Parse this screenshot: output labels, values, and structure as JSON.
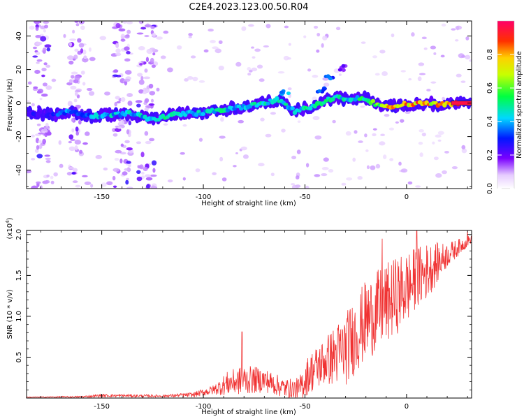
{
  "title": "C2E4.2023.123.00.50.R04",
  "chart_data": [
    {
      "type": "heatmap",
      "xlabel": "Height of straight line (km)",
      "ylabel": "Frequency (Hz)",
      "xlim": [
        -187,
        32
      ],
      "ylim": [
        -51,
        49
      ],
      "xticks": [
        -150,
        -100,
        -50,
        0
      ],
      "yticks": [
        -40,
        -20,
        0,
        20,
        40
      ],
      "colorbar": {
        "label": "Normalized spectral amplitude",
        "ticks": [
          "0.0",
          "0.2",
          "0.4",
          "0.6",
          "0.8"
        ],
        "range": [
          0,
          1
        ]
      },
      "ridge": [
        {
          "x": -187,
          "y": -6,
          "amp": 0.25
        },
        {
          "x": -175,
          "y": -7,
          "amp": 0.3
        },
        {
          "x": -165,
          "y": -5,
          "amp": 0.4
        },
        {
          "x": -155,
          "y": -8,
          "amp": 0.4
        },
        {
          "x": -145,
          "y": -7,
          "amp": 0.45
        },
        {
          "x": -135,
          "y": -6,
          "amp": 0.45
        },
        {
          "x": -125,
          "y": -10,
          "amp": 0.45
        },
        {
          "x": -118,
          "y": -8,
          "amp": 0.5
        },
        {
          "x": -110,
          "y": -6,
          "amp": 0.5
        },
        {
          "x": -100,
          "y": -6,
          "amp": 0.45
        },
        {
          "x": -92,
          "y": -4,
          "amp": 0.5
        },
        {
          "x": -85,
          "y": -3,
          "amp": 0.45
        },
        {
          "x": -78,
          "y": -2,
          "amp": 0.5
        },
        {
          "x": -70,
          "y": 0,
          "amp": 0.5
        },
        {
          "x": -63,
          "y": 2,
          "amp": 0.5
        },
        {
          "x": -55,
          "y": -5,
          "amp": 0.45
        },
        {
          "x": -48,
          "y": -3,
          "amp": 0.5
        },
        {
          "x": -42,
          "y": 0,
          "amp": 0.5
        },
        {
          "x": -35,
          "y": 4,
          "amp": 0.5
        },
        {
          "x": -28,
          "y": 2,
          "amp": 0.45
        },
        {
          "x": -20,
          "y": 3,
          "amp": 0.55
        },
        {
          "x": -15,
          "y": -1,
          "amp": 0.65
        },
        {
          "x": -8,
          "y": -2,
          "amp": 0.8
        },
        {
          "x": 0,
          "y": -0.5,
          "amp": 0.85
        },
        {
          "x": 8,
          "y": 0,
          "amp": 0.85
        },
        {
          "x": 16,
          "y": -1,
          "amp": 0.8
        },
        {
          "x": 24,
          "y": 0,
          "amp": 1.0
        },
        {
          "x": 31,
          "y": 0,
          "amp": 1.0
        }
      ],
      "side_features": [
        {
          "x": -38,
          "y": 16,
          "amp": 0.35
        },
        {
          "x": -32,
          "y": 21,
          "amp": 0.2
        },
        {
          "x": -60,
          "y": 6,
          "amp": 0.45
        },
        {
          "x": -42,
          "y": 8,
          "amp": 0.35
        }
      ],
      "vertical_streaks_x": [
        -180,
        -162,
        -140,
        -128
      ]
    },
    {
      "type": "line",
      "xlabel": "Height of straight line (km)",
      "ylabel": "SNR (10 * v/v)",
      "multiplier": "(x10",
      "multiplier_exp": "4",
      "xlim": [
        -187,
        32
      ],
      "ylim": [
        0,
        2.05
      ],
      "xticks": [
        -150,
        -100,
        -50,
        0
      ],
      "yticks": [
        "0.5",
        "1.0",
        "1.5",
        "2.0"
      ],
      "series": [
        {
          "color": "#f03232",
          "envelope": [
            {
              "x": -187,
              "base": 0.01,
              "amp": 0.005
            },
            {
              "x": -160,
              "base": 0.015,
              "amp": 0.01
            },
            {
              "x": -150,
              "base": 0.03,
              "amp": 0.02
            },
            {
              "x": -120,
              "base": 0.025,
              "amp": 0.015
            },
            {
              "x": -105,
              "base": 0.04,
              "amp": 0.03
            },
            {
              "x": -95,
              "base": 0.1,
              "amp": 0.06
            },
            {
              "x": -88,
              "base": 0.18,
              "amp": 0.15
            },
            {
              "x": -80,
              "base": 0.22,
              "amp": 0.18
            },
            {
              "x": -70,
              "base": 0.22,
              "amp": 0.15
            },
            {
              "x": -60,
              "base": 0.12,
              "amp": 0.12
            },
            {
              "x": -53,
              "base": 0.1,
              "amp": 0.15
            },
            {
              "x": -48,
              "base": 0.3,
              "amp": 0.25
            },
            {
              "x": -40,
              "base": 0.45,
              "amp": 0.3
            },
            {
              "x": -30,
              "base": 0.6,
              "amp": 0.45
            },
            {
              "x": -20,
              "base": 0.95,
              "amp": 0.5
            },
            {
              "x": -10,
              "base": 1.15,
              "amp": 0.5
            },
            {
              "x": 0,
              "base": 1.35,
              "amp": 0.45
            },
            {
              "x": 10,
              "base": 1.55,
              "amp": 0.35
            },
            {
              "x": 20,
              "base": 1.75,
              "amp": 0.15
            },
            {
              "x": 32,
              "base": 1.95,
              "amp": 0.05
            }
          ],
          "peaks": [
            {
              "x": -81,
              "y": 0.81
            },
            {
              "x": 5,
              "y": 2.05
            },
            {
              "x": -12,
              "y": 1.95
            },
            {
              "x": 30,
              "y": 2.05
            }
          ]
        }
      ]
    }
  ]
}
